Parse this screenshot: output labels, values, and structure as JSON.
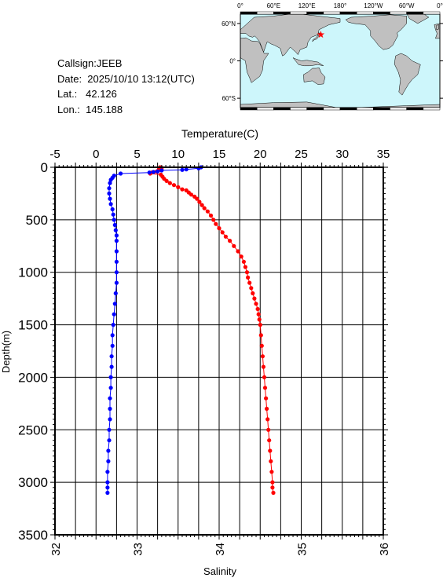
{
  "header": {
    "callsign": "Callsign:JEEB",
    "date": "Date:  2025/10/10 13:12(UTC)",
    "lat": "Lat.:   42.126",
    "lon": "Lon.:  145.188"
  },
  "map": {
    "lon_labels": [
      "0°",
      "60°E",
      "120°E",
      "180°",
      "120°W",
      "60°W",
      "0°"
    ],
    "lat_labels": [
      "60°N",
      "0°",
      "60°S"
    ],
    "station": {
      "lat": 42.126,
      "lon": 145.188
    },
    "colors": {
      "ocean": "#cdf6fb",
      "land": "#c0c0c0",
      "marker": "#ff0000"
    }
  },
  "chart_data": {
    "type": "scatter",
    "xlabel_top": "Temperature(C)",
    "xlabel_bottom": "Salinity",
    "ylabel": "Depth(m)",
    "temperature_ticks": [
      "-5",
      "0",
      "5",
      "10",
      "15",
      "20",
      "25",
      "30",
      "35"
    ],
    "salinity_ticks": [
      "32",
      "33",
      "34",
      "35",
      "36"
    ],
    "depth_ticks": [
      "0",
      "500",
      "1000",
      "1500",
      "2000",
      "2500",
      "3000",
      "3500"
    ],
    "temperature_range": [
      -5,
      35
    ],
    "salinity_range": [
      32,
      36
    ],
    "depth_range": [
      0,
      3500
    ],
    "grid": true,
    "series": [
      {
        "axis": "temperature",
        "color": "#ff0000",
        "points": [
          [
            7.8,
            0
          ],
          [
            8.0,
            5
          ],
          [
            7.9,
            10
          ],
          [
            7.7,
            15
          ],
          [
            7.9,
            20
          ],
          [
            8.0,
            25
          ],
          [
            7.6,
            30
          ],
          [
            7.4,
            40
          ],
          [
            6.8,
            50
          ],
          [
            6.6,
            60
          ],
          [
            7.9,
            70
          ],
          [
            8.1,
            90
          ],
          [
            8.3,
            110
          ],
          [
            8.6,
            130
          ],
          [
            9.0,
            150
          ],
          [
            9.5,
            170
          ],
          [
            10.0,
            190
          ],
          [
            10.5,
            210
          ],
          [
            11.0,
            220
          ],
          [
            11.3,
            240
          ],
          [
            11.6,
            260
          ],
          [
            12.0,
            280
          ],
          [
            12.3,
            300
          ],
          [
            12.6,
            330
          ],
          [
            12.9,
            360
          ],
          [
            13.2,
            390
          ],
          [
            13.6,
            420
          ],
          [
            14.0,
            460
          ],
          [
            14.3,
            500
          ],
          [
            14.6,
            540
          ],
          [
            15.0,
            580
          ],
          [
            15.4,
            620
          ],
          [
            15.8,
            660
          ],
          [
            16.3,
            700
          ],
          [
            16.8,
            750
          ],
          [
            17.3,
            800
          ],
          [
            17.7,
            850
          ],
          [
            18.0,
            900
          ],
          [
            18.2,
            950
          ],
          [
            18.4,
            1000
          ],
          [
            18.5,
            1050
          ],
          [
            18.7,
            1100
          ],
          [
            18.9,
            1150
          ],
          [
            19.1,
            1200
          ],
          [
            19.3,
            1250
          ],
          [
            19.5,
            1300
          ],
          [
            19.7,
            1350
          ],
          [
            19.8,
            1400
          ],
          [
            19.9,
            1450
          ],
          [
            20.0,
            1500
          ],
          [
            20.1,
            1600
          ],
          [
            20.2,
            1700
          ],
          [
            20.3,
            1800
          ],
          [
            20.4,
            1900
          ],
          [
            20.5,
            2000
          ],
          [
            20.6,
            2100
          ],
          [
            20.7,
            2200
          ],
          [
            20.8,
            2300
          ],
          [
            20.9,
            2400
          ],
          [
            21.0,
            2500
          ],
          [
            21.1,
            2600
          ],
          [
            21.2,
            2700
          ],
          [
            21.3,
            2800
          ],
          [
            21.4,
            2900
          ],
          [
            21.5,
            3000
          ],
          [
            21.5,
            3050
          ],
          [
            21.6,
            3100
          ]
        ]
      },
      {
        "axis": "salinity",
        "color": "#0000ff",
        "points": [
          [
            33.78,
            0
          ],
          [
            33.75,
            10
          ],
          [
            33.6,
            20
          ],
          [
            33.55,
            25
          ],
          [
            33.3,
            30
          ],
          [
            33.25,
            40
          ],
          [
            33.2,
            45
          ],
          [
            33.15,
            50
          ],
          [
            32.8,
            60
          ],
          [
            32.72,
            80
          ],
          [
            32.7,
            100
          ],
          [
            32.68,
            120
          ],
          [
            32.67,
            150
          ],
          [
            32.66,
            200
          ],
          [
            32.66,
            250
          ],
          [
            32.67,
            300
          ],
          [
            32.68,
            350
          ],
          [
            32.7,
            400
          ],
          [
            32.71,
            450
          ],
          [
            32.72,
            500
          ],
          [
            32.73,
            550
          ],
          [
            32.74,
            600
          ],
          [
            32.75,
            650
          ],
          [
            32.75,
            700
          ],
          [
            32.75,
            800
          ],
          [
            32.75,
            900
          ],
          [
            32.75,
            1000
          ],
          [
            32.75,
            1100
          ],
          [
            32.74,
            1200
          ],
          [
            32.73,
            1300
          ],
          [
            32.72,
            1400
          ],
          [
            32.71,
            1500
          ],
          [
            32.7,
            1600
          ],
          [
            32.7,
            1700
          ],
          [
            32.69,
            1800
          ],
          [
            32.69,
            1900
          ],
          [
            32.68,
            2000
          ],
          [
            32.68,
            2100
          ],
          [
            32.67,
            2200
          ],
          [
            32.67,
            2300
          ],
          [
            32.67,
            2400
          ],
          [
            32.66,
            2500
          ],
          [
            32.66,
            2600
          ],
          [
            32.65,
            2700
          ],
          [
            32.65,
            2800
          ],
          [
            32.64,
            2900
          ],
          [
            32.64,
            3000
          ],
          [
            32.64,
            3050
          ],
          [
            32.64,
            3100
          ]
        ]
      }
    ]
  }
}
